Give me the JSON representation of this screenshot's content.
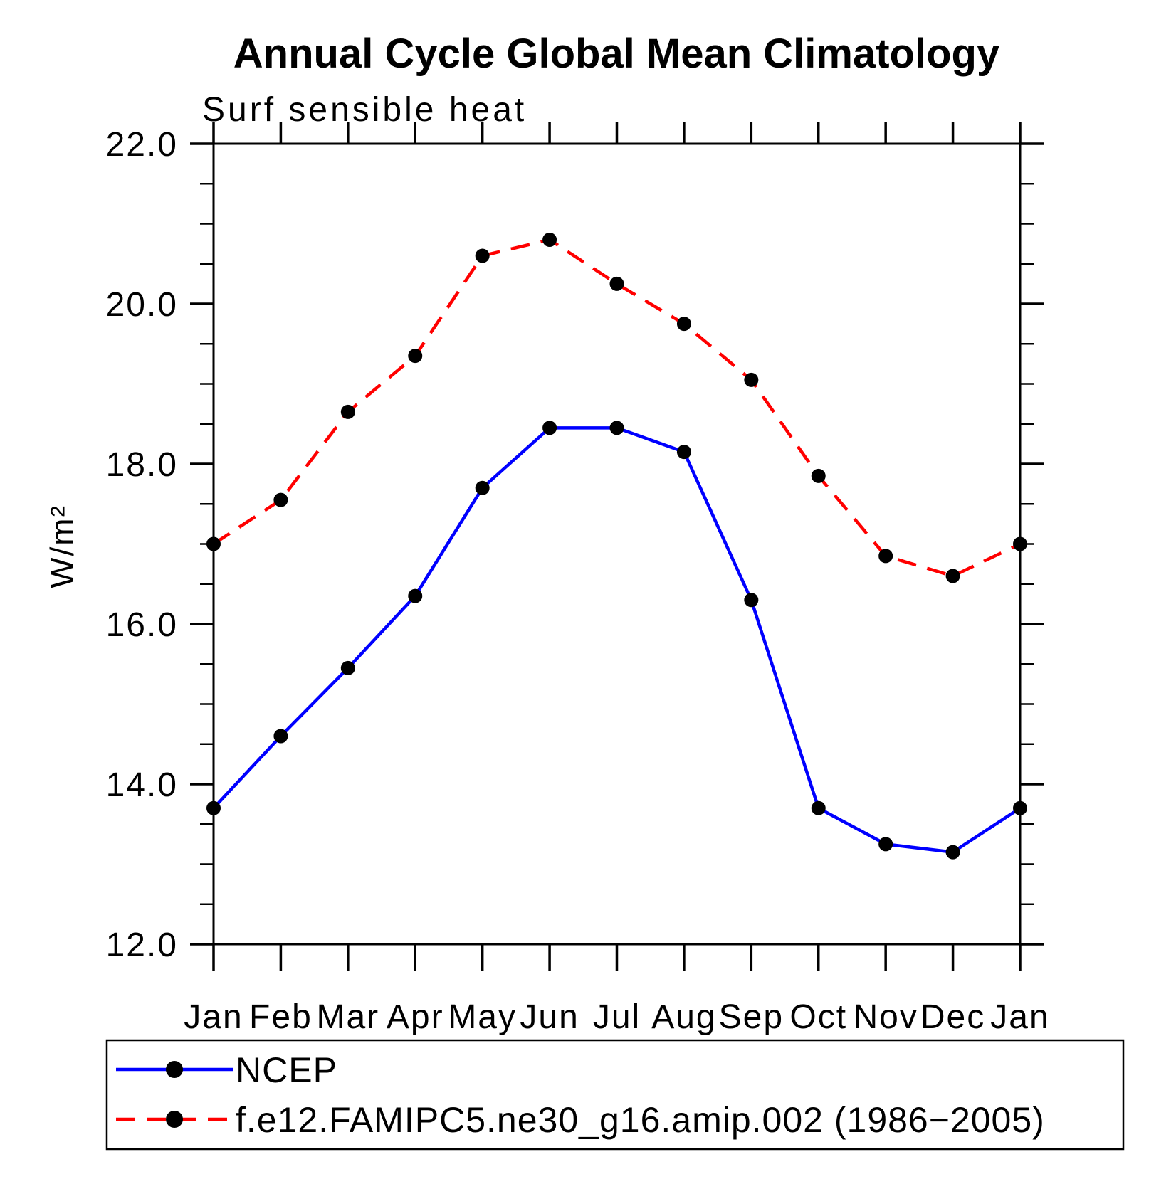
{
  "background_color": "#ffffff",
  "chart_data": {
    "type": "line",
    "title": "Annual Cycle Global Mean Climatology",
    "subtitle": "Surf sensible heat",
    "xlabel": "",
    "ylabel": "W/m²",
    "grid": false,
    "legend_position": "bottom-left-box",
    "ylim": [
      12.0,
      22.0
    ],
    "y_minor_step": 0.5,
    "y_ticks": [
      12.0,
      14.0,
      16.0,
      18.0,
      20.0,
      22.0
    ],
    "y_tick_labels": [
      "12.0",
      "14.0",
      "16.0",
      "18.0",
      "20.0",
      "22.0"
    ],
    "x_tick_labels": [
      "Jan",
      "Feb",
      "Mar",
      "Apr",
      "May",
      "Jun",
      "Jul",
      "Aug",
      "Sep",
      "Oct",
      "Nov",
      "Dec",
      "Jan"
    ],
    "axis_color": "#000000",
    "series": [
      {
        "name": "NCEP",
        "color": "#0000ff",
        "style": "solid",
        "marker": "circle",
        "marker_color": "#000000",
        "values": [
          13.7,
          14.6,
          15.45,
          16.35,
          17.7,
          18.45,
          18.45,
          18.15,
          16.3,
          13.7,
          13.25,
          13.15,
          13.7
        ]
      },
      {
        "name": "f.e12.FAMIPC5.ne30_g16.amip.002 (1986−2005)",
        "color": "#ff0000",
        "style": "dashed",
        "marker": "circle",
        "marker_color": "#000000",
        "values": [
          17.0,
          17.55,
          18.65,
          19.35,
          20.6,
          20.8,
          20.25,
          19.75,
          19.05,
          17.85,
          16.85,
          16.6,
          17.0
        ]
      }
    ]
  }
}
